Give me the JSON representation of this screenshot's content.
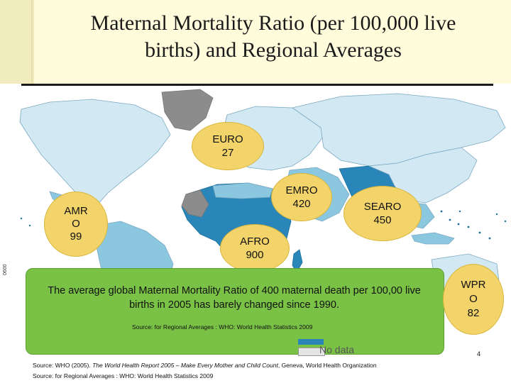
{
  "title": {
    "line1": "Maternal Mortality Ratio (per 100,000 live",
    "line2": "births) and Regional Averages"
  },
  "map": {
    "regions": [
      {
        "code": "EURO",
        "value": "27"
      },
      {
        "code": "EMRO",
        "value": "420"
      },
      {
        "code": "AMR",
        "value": "99",
        "label_lines": [
          "AMR",
          "O",
          "99"
        ]
      },
      {
        "code": "SEARO",
        "value": "450"
      },
      {
        "code": "AFRO",
        "value": "900"
      },
      {
        "code": "WPR",
        "value": "82",
        "label_lines": [
          "WPR",
          "O",
          "82"
        ]
      }
    ],
    "legend_label": "No data",
    "side_code": "0600",
    "colors": {
      "ocean": "#ffffff",
      "land_light": "#d2e8f3",
      "land_medium": "#8cc7e0",
      "land_dark": "#2a86b8",
      "land_darkest": "#1c6f9e",
      "no_data": "#8c8c8c",
      "bubble": "#f3d46b",
      "callout": "#7ac246"
    }
  },
  "callout": {
    "text": "The  average global Maternal Mortality Ratio of 400 maternal death per 100,00 live births in 2005 has barely changed since 1990.",
    "source": "Source:  for Regional Averages : WHO: World Health Statistics 2009"
  },
  "footer": {
    "page_number": "4",
    "source1_prefix": "Source: WHO (2005). ",
    "source1_italic": "The World Health Report 2005 – Make Every Mother and Child Count",
    "source1_suffix": ", Geneva, World Health Organization",
    "source2": "Source:  for Regional Averages : WHO: World Health Statistics 2009"
  }
}
